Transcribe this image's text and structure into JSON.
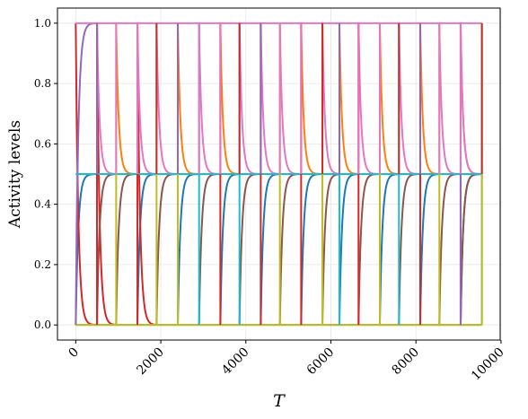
{
  "chart_data": {
    "type": "line",
    "title": "",
    "xlabel": "T",
    "ylabel": "Activity levels",
    "xlim": [
      -430,
      9980
    ],
    "ylim": [
      -0.05,
      1.05
    ],
    "xticks": [
      0,
      2000,
      4000,
      6000,
      8000,
      10000
    ],
    "xtick_labels": [
      "0",
      "2000",
      "4000",
      "6000",
      "8000",
      "10000"
    ],
    "yticks": [
      0.0,
      0.2,
      0.4,
      0.6,
      0.8,
      1.0
    ],
    "ytick_labels": [
      "0.0",
      "0.2",
      "0.4",
      "0.6",
      "0.8",
      "1.0"
    ],
    "grid": true,
    "legend": "none",
    "x_max": 9550,
    "switch_times": [
      0,
      500,
      950,
      1450,
      1900,
      2400,
      2900,
      3400,
      3850,
      4350,
      4800,
      5300,
      5800,
      6200,
      6650,
      7150,
      7600,
      8100,
      8550,
      9050,
      9550
    ],
    "decay_time_constant": 60,
    "series": [
      {
        "color": "#1f77b4",
        "pattern": "rise_then_hold",
        "low": 0.0,
        "high": 0.5,
        "periods": [
          [
            0,
            500
          ],
          [
            1450,
            1900
          ],
          [
            2400,
            2900
          ],
          [
            3400,
            3850
          ],
          [
            4350,
            4800
          ],
          [
            5300,
            5800
          ],
          [
            6200,
            6650
          ],
          [
            7150,
            7600
          ],
          [
            8100,
            8550
          ],
          [
            9050,
            9550
          ]
        ]
      },
      {
        "color": "#ff7f0e",
        "pattern": "decay_then_hold",
        "low": 0.5,
        "high": 1.0,
        "periods": [
          [
            950,
            1450
          ],
          [
            2400,
            2900
          ],
          [
            3400,
            3850
          ],
          [
            5300,
            5800
          ],
          [
            6200,
            6650
          ],
          [
            7150,
            7600
          ],
          [
            8100,
            8550
          ],
          [
            9050,
            9550
          ]
        ]
      },
      {
        "color": "#d62728",
        "pattern": "decay_then_hold",
        "low": 0.0,
        "high": 1.0,
        "periods": [
          [
            0,
            500
          ],
          [
            500,
            950
          ],
          [
            1450,
            1900
          ]
        ]
      },
      {
        "color": "#9467bd",
        "pattern": "rise_then_hold",
        "low": 0.0,
        "high": 1.0,
        "periods": [
          [
            0,
            500
          ]
        ]
      },
      {
        "color": "#8c564b",
        "pattern": "rise_then_hold",
        "low": 0.0,
        "high": 0.5,
        "periods": [
          [
            500,
            950
          ],
          [
            950,
            1450
          ],
          [
            1900,
            2400
          ],
          [
            2900,
            3400
          ],
          [
            3850,
            4350
          ],
          [
            4800,
            5300
          ],
          [
            5800,
            6200
          ],
          [
            6650,
            7150
          ],
          [
            7600,
            8100
          ],
          [
            8550,
            9050
          ],
          [
            9050,
            9550
          ]
        ]
      },
      {
        "color": "#e377c2",
        "pattern": "decay_then_hold",
        "low": 0.5,
        "high": 1.0,
        "periods": [
          [
            500,
            950
          ],
          [
            1450,
            1900
          ],
          [
            1900,
            2400
          ],
          [
            2900,
            3400
          ],
          [
            3850,
            4350
          ],
          [
            4350,
            4800
          ],
          [
            4800,
            5300
          ],
          [
            5800,
            6200
          ],
          [
            6650,
            7150
          ],
          [
            7600,
            8100
          ],
          [
            8550,
            9050
          ],
          [
            9050,
            9550
          ]
        ]
      },
      {
        "color": "#7f7f7f",
        "pattern": "flat",
        "low": 0.0,
        "high": 0.0,
        "periods": [
          [
            0,
            9550
          ]
        ]
      },
      {
        "color": "#bcbd22",
        "pattern": "flat",
        "low": 0.0,
        "high": 0.0,
        "periods": [
          [
            0,
            9550
          ]
        ]
      },
      {
        "color": "#17becf",
        "pattern": "flat",
        "low": 0.5,
        "high": 0.5,
        "periods": [
          [
            0,
            9550
          ]
        ]
      }
    ],
    "vertical_switch_lines": [
      {
        "x": 500,
        "color": "#9467bd"
      },
      {
        "x": 500,
        "color": "#d62728"
      },
      {
        "x": 950,
        "color": "#bcbd22"
      },
      {
        "x": 1450,
        "color": "#d62728"
      },
      {
        "x": 1900,
        "color": "#bcbd22"
      },
      {
        "x": 2400,
        "color": "#bcbd22"
      },
      {
        "x": 2900,
        "color": "#17becf"
      },
      {
        "x": 3400,
        "color": "#d62728"
      },
      {
        "x": 3850,
        "color": "#17becf"
      },
      {
        "x": 4350,
        "color": "#d62728"
      },
      {
        "x": 4800,
        "color": "#bcbd22"
      },
      {
        "x": 5300,
        "color": "#d62728"
      },
      {
        "x": 5800,
        "color": "#bcbd22"
      },
      {
        "x": 6200,
        "color": "#17becf"
      },
      {
        "x": 6650,
        "color": "#d62728"
      },
      {
        "x": 7150,
        "color": "#bcbd22"
      },
      {
        "x": 7600,
        "color": "#17becf"
      },
      {
        "x": 8100,
        "color": "#d62728"
      },
      {
        "x": 8550,
        "color": "#bcbd22"
      },
      {
        "x": 9050,
        "color": "#d62728"
      },
      {
        "x": 9050,
        "color": "#9467bd"
      },
      {
        "x": 9550,
        "color": "#17becf"
      },
      {
        "x": 9550,
        "color": "#bcbd22"
      }
    ],
    "top_line": {
      "y": 1.0,
      "color": "#e377c2",
      "x_range": [
        0,
        9550
      ]
    }
  }
}
